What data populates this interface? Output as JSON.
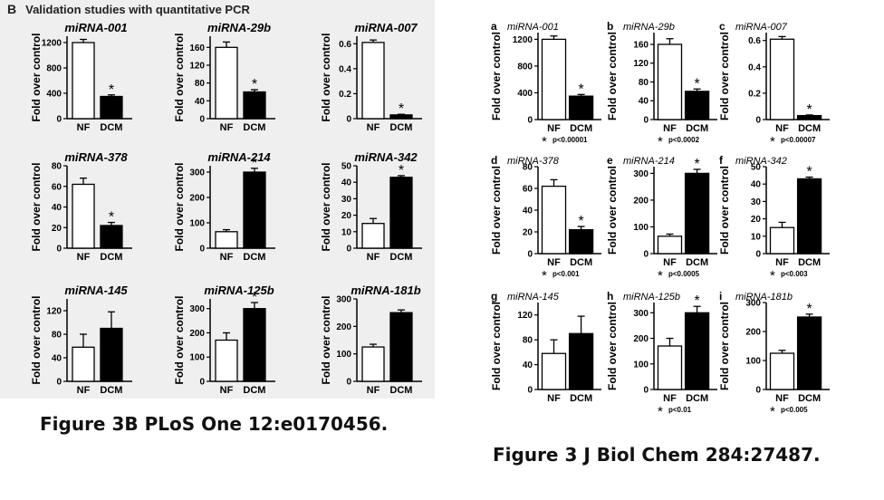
{
  "left": {
    "panel_letter": "B",
    "title": "Validation studies with quantitative PCR",
    "caption": "Figure 3B PLoS One 12:e0170456."
  },
  "right": {
    "caption": "Figure 3 J Biol Chem 284:27487."
  },
  "ylabel": "Fold over control",
  "categories": [
    "NF",
    "DCM"
  ],
  "colors": {
    "nf": "#ffffff",
    "dcm": "#000000",
    "bg_left": "#efefef"
  },
  "chart_data": [
    {
      "type": "bar",
      "source": "left",
      "title": "miRNA-001",
      "categories": [
        "NF",
        "DCM"
      ],
      "values": [
        1200,
        350
      ],
      "errors": [
        50,
        25
      ],
      "ylim": [
        0,
        1300
      ],
      "yticks": [
        0,
        400,
        800,
        1200
      ],
      "star": [
        false,
        true
      ]
    },
    {
      "type": "bar",
      "source": "left",
      "title": "miRNA-29b",
      "categories": [
        "NF",
        "DCM"
      ],
      "values": [
        160,
        60
      ],
      "errors": [
        12,
        5
      ],
      "ylim": [
        0,
        185
      ],
      "yticks": [
        0,
        40,
        80,
        120,
        160
      ],
      "star": [
        false,
        true
      ]
    },
    {
      "type": "bar",
      "source": "left",
      "title": "miRNA-007",
      "categories": [
        "NF",
        "DCM"
      ],
      "values": [
        0.61,
        0.03
      ],
      "errors": [
        0.02,
        0.005
      ],
      "ylim": [
        0,
        0.66
      ],
      "yticks": [
        0,
        0.2,
        0.4,
        0.6
      ],
      "star": [
        false,
        true
      ]
    },
    {
      "type": "bar",
      "source": "left",
      "title": "miRNA-378",
      "categories": [
        "NF",
        "DCM"
      ],
      "values": [
        62,
        22
      ],
      "errors": [
        6,
        3
      ],
      "ylim": [
        0,
        80
      ],
      "yticks": [
        0,
        20,
        40,
        60,
        80
      ],
      "star": [
        false,
        true
      ]
    },
    {
      "type": "bar",
      "source": "left",
      "title": "miRNA-214",
      "categories": [
        "NF",
        "DCM"
      ],
      "values": [
        65,
        300
      ],
      "errors": [
        8,
        15
      ],
      "ylim": [
        0,
        325
      ],
      "yticks": [
        0,
        100,
        200,
        300
      ],
      "star": [
        false,
        true
      ]
    },
    {
      "type": "bar",
      "source": "left",
      "title": "miRNA-342",
      "categories": [
        "NF",
        "DCM"
      ],
      "values": [
        15,
        43
      ],
      "errors": [
        3,
        1
      ],
      "ylim": [
        0,
        50
      ],
      "yticks": [
        0,
        10,
        20,
        30,
        40,
        50
      ],
      "star": [
        false,
        true
      ]
    },
    {
      "type": "bar",
      "source": "left",
      "title": "miRNA-145",
      "categories": [
        "NF",
        "DCM"
      ],
      "values": [
        58,
        90
      ],
      "errors": [
        22,
        28
      ],
      "ylim": [
        0,
        140
      ],
      "yticks": [
        0,
        40,
        80,
        120
      ],
      "star": [
        false,
        false
      ]
    },
    {
      "type": "bar",
      "source": "left",
      "title": "miRNA-125b",
      "categories": [
        "NF",
        "DCM"
      ],
      "values": [
        170,
        300
      ],
      "errors": [
        30,
        25
      ],
      "ylim": [
        0,
        340
      ],
      "yticks": [
        0,
        100,
        200,
        300
      ],
      "star": [
        false,
        true
      ]
    },
    {
      "type": "bar",
      "source": "left",
      "title": "miRNA-181b",
      "categories": [
        "NF",
        "DCM"
      ],
      "values": [
        125,
        250
      ],
      "errors": [
        10,
        10
      ],
      "ylim": [
        0,
        300
      ],
      "yticks": [
        0,
        100,
        200,
        300
      ],
      "star": [
        false,
        false
      ]
    },
    {
      "type": "bar",
      "source": "right",
      "letter": "a",
      "title": "miRNA-001",
      "categories": [
        "NF",
        "DCM"
      ],
      "values": [
        1200,
        350
      ],
      "errors": [
        50,
        25
      ],
      "ylim": [
        0,
        1300
      ],
      "yticks": [
        0,
        400,
        800,
        1200
      ],
      "star": [
        false,
        true
      ],
      "pvalue": "p<0.00001"
    },
    {
      "type": "bar",
      "source": "right",
      "letter": "b",
      "title": "miRNA-29b",
      "categories": [
        "NF",
        "DCM"
      ],
      "values": [
        160,
        60
      ],
      "errors": [
        12,
        5
      ],
      "ylim": [
        0,
        185
      ],
      "yticks": [
        0,
        40,
        80,
        120,
        160
      ],
      "star": [
        false,
        true
      ],
      "pvalue": "p<0.0002"
    },
    {
      "type": "bar",
      "source": "right",
      "letter": "c",
      "title": "miRNA-007",
      "categories": [
        "NF",
        "DCM"
      ],
      "values": [
        0.61,
        0.03
      ],
      "errors": [
        0.02,
        0.005
      ],
      "ylim": [
        0,
        0.66
      ],
      "yticks": [
        0,
        0.2,
        0.4,
        0.6
      ],
      "star": [
        false,
        true
      ],
      "pvalue": "p<0.00007"
    },
    {
      "type": "bar",
      "source": "right",
      "letter": "d",
      "title": "miRNA-378",
      "categories": [
        "NF",
        "DCM"
      ],
      "values": [
        62,
        22
      ],
      "errors": [
        6,
        3
      ],
      "ylim": [
        0,
        80
      ],
      "yticks": [
        0,
        20,
        40,
        60,
        80
      ],
      "star": [
        false,
        true
      ],
      "pvalue": "p<0.001"
    },
    {
      "type": "bar",
      "source": "right",
      "letter": "e",
      "title": "miRNA-214",
      "categories": [
        "NF",
        "DCM"
      ],
      "values": [
        65,
        300
      ],
      "errors": [
        8,
        15
      ],
      "ylim": [
        0,
        325
      ],
      "yticks": [
        0,
        100,
        200,
        300
      ],
      "star": [
        false,
        true
      ],
      "pvalue": "p<0.0005"
    },
    {
      "type": "bar",
      "source": "right",
      "letter": "f",
      "title": "miRNA-342",
      "categories": [
        "NF",
        "DCM"
      ],
      "values": [
        15,
        43
      ],
      "errors": [
        3,
        1
      ],
      "ylim": [
        0,
        50
      ],
      "yticks": [
        0,
        10,
        20,
        30,
        40,
        50
      ],
      "star": [
        false,
        true
      ],
      "pvalue": "p<0.003"
    },
    {
      "type": "bar",
      "source": "right",
      "letter": "g",
      "title": "miRNA-145",
      "categories": [
        "NF",
        "DCM"
      ],
      "values": [
        58,
        90
      ],
      "errors": [
        22,
        28
      ],
      "ylim": [
        0,
        140
      ],
      "yticks": [
        0,
        40,
        80,
        120
      ],
      "star": [
        false,
        false
      ],
      "pvalue": ""
    },
    {
      "type": "bar",
      "source": "right",
      "letter": "h",
      "title": "miRNA-125b",
      "categories": [
        "NF",
        "DCM"
      ],
      "values": [
        170,
        300
      ],
      "errors": [
        30,
        25
      ],
      "ylim": [
        0,
        340
      ],
      "yticks": [
        0,
        100,
        200,
        300
      ],
      "star": [
        false,
        true
      ],
      "pvalue": "p<0.01"
    },
    {
      "type": "bar",
      "source": "right",
      "letter": "i",
      "title": "miRNA-181b",
      "categories": [
        "NF",
        "DCM"
      ],
      "values": [
        125,
        250
      ],
      "errors": [
        10,
        10
      ],
      "ylim": [
        0,
        300
      ],
      "yticks": [
        0,
        100,
        200,
        300
      ],
      "star": [
        false,
        true
      ],
      "pvalue": "p<0.005"
    }
  ]
}
